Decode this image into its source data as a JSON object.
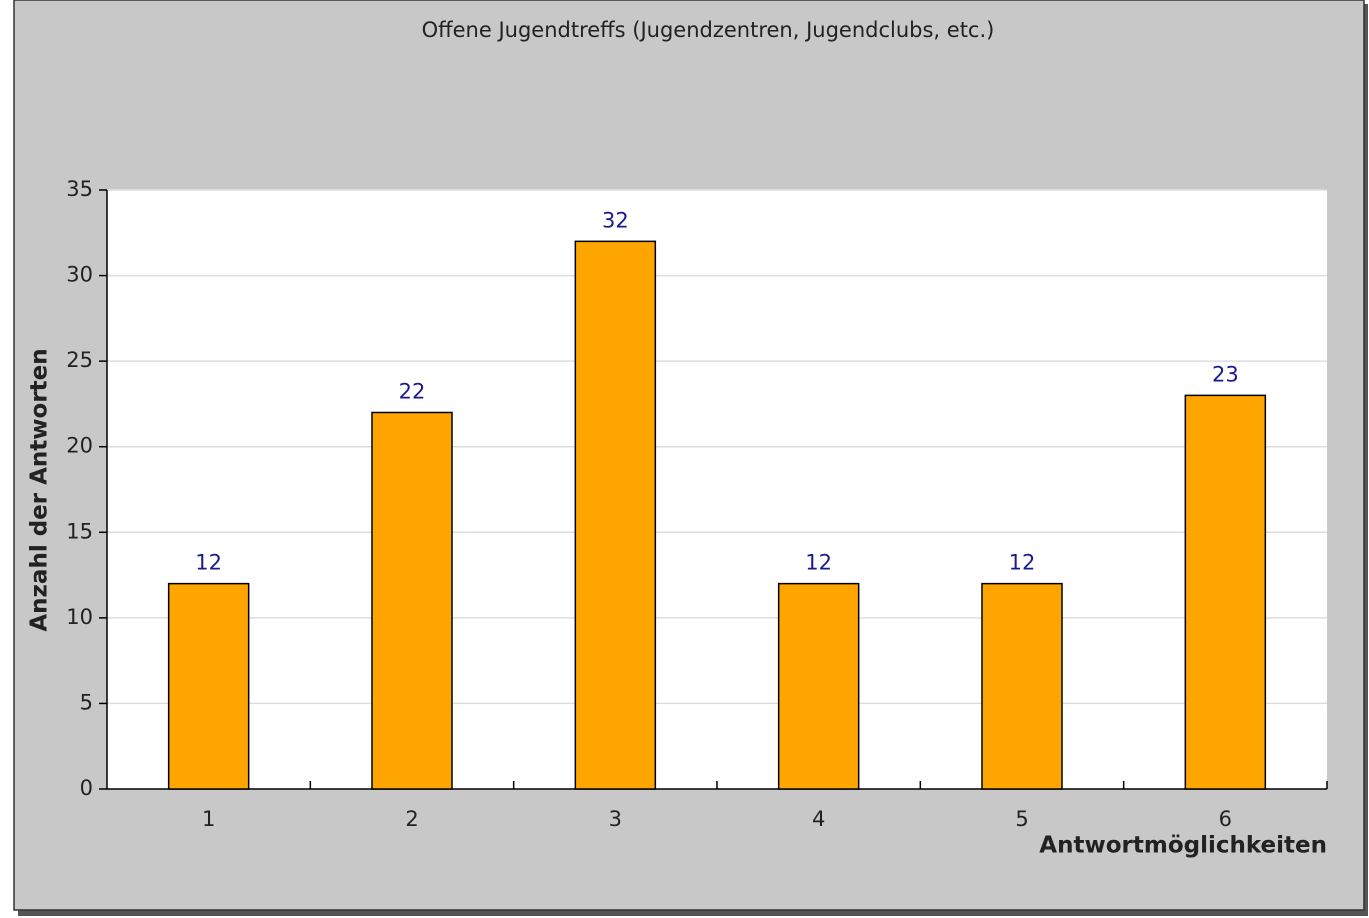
{
  "chart_data": {
    "type": "bar",
    "title": "Offene Jugendtreffs (Jugendzentren, Jugendclubs, etc.)",
    "x_label": "Antwortmöglichkeiten",
    "y_label": "Anzahl der Antworten",
    "categories": [
      "1",
      "2",
      "3",
      "4",
      "5",
      "6"
    ],
    "values": [
      12,
      22,
      32,
      12,
      12,
      23
    ],
    "color": "#ffa500",
    "value_label_color": "#1a1a8c",
    "ylim": [
      0,
      35
    ],
    "yticks": [
      0,
      5,
      10,
      15,
      20,
      25,
      30,
      35
    ],
    "grid": true
  }
}
